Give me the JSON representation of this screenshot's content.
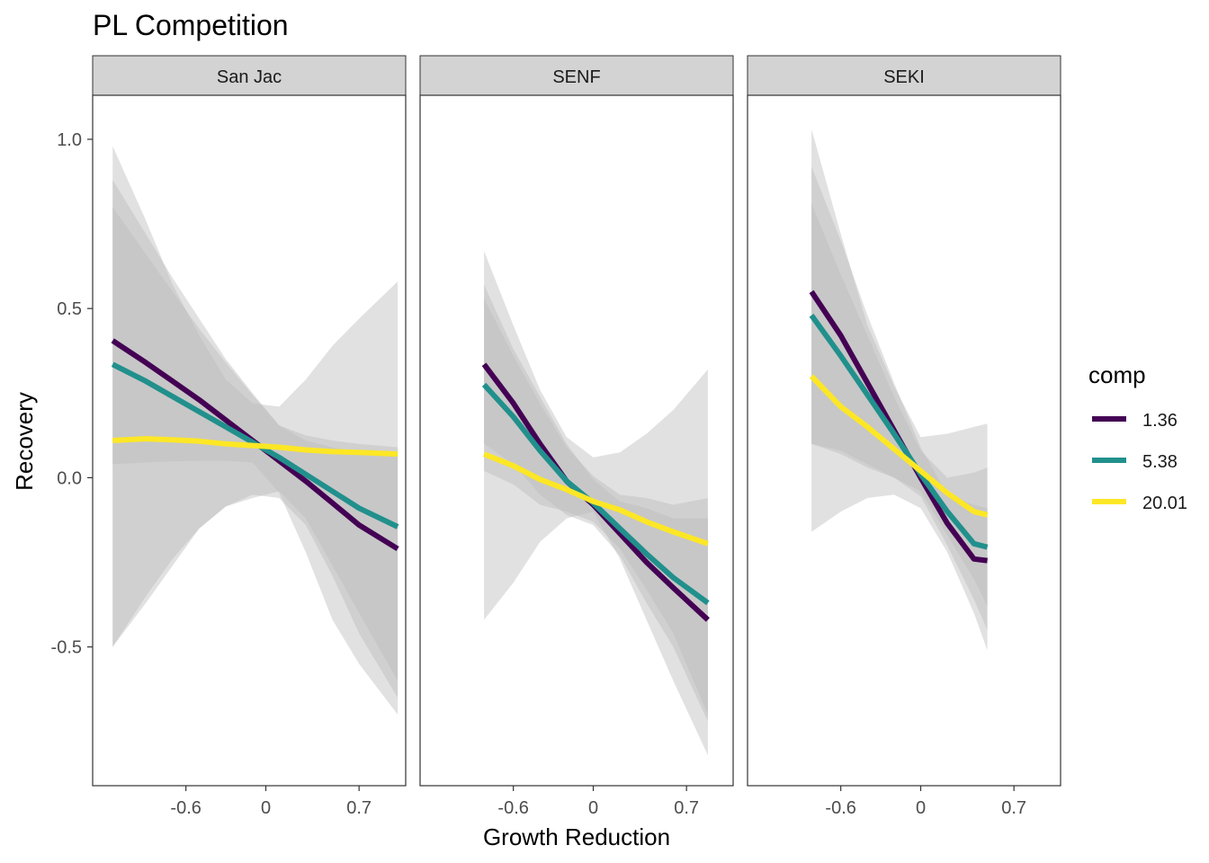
{
  "chart_data": {
    "type": "line",
    "title": "PL Competition",
    "xlabel": "Growth Reduction",
    "ylabel": "Recovery",
    "x_ticks": [
      -0.6,
      0,
      0.7
    ],
    "x_tick_labels": [
      "-0.6",
      "0",
      "0.7"
    ],
    "y_ticks": [
      -0.5,
      0.0,
      0.5,
      1.0
    ],
    "y_tick_labels": [
      "-0.5",
      "0.0",
      "0.5",
      "1.0"
    ],
    "xlim": [
      -1.3,
      1.05
    ],
    "ylim": [
      -0.91,
      1.13
    ],
    "legend": {
      "title": "comp",
      "position": "right"
    },
    "colors": {
      "1.36": "#440154",
      "5.38": "#21908C",
      "20.01": "#FDE725",
      "ribbon": "#bdbdbd",
      "strip": "#d3d3d3"
    },
    "panels": [
      {
        "label": "San Jac",
        "series": [
          {
            "name": "1.36",
            "color": "#440154",
            "x": [
              -1.15,
              -0.9,
              -0.7,
              -0.5,
              -0.3,
              -0.1,
              0.1,
              0.3,
              0.5,
              0.7,
              0.99
            ],
            "y": [
              0.405,
              0.34,
              0.285,
              0.23,
              0.17,
              0.11,
              0.05,
              -0.01,
              -0.075,
              -0.14,
              -0.21
            ],
            "lower": [
              -0.5,
              -0.35,
              -0.24,
              -0.15,
              -0.085,
              -0.05,
              -0.06,
              -0.14,
              -0.29,
              -0.46,
              -0.65
            ],
            "upper": [
              0.88,
              0.72,
              0.59,
              0.47,
              0.35,
              0.25,
              0.155,
              0.11,
              0.09,
              0.075,
              0.065
            ]
          },
          {
            "name": "5.38",
            "color": "#21908C",
            "x": [
              -1.15,
              -0.9,
              -0.7,
              -0.5,
              -0.3,
              -0.1,
              0.1,
              0.3,
              0.5,
              0.7,
              0.99
            ],
            "y": [
              0.335,
              0.285,
              0.24,
              0.195,
              0.15,
              0.105,
              0.06,
              0.01,
              -0.04,
              -0.09,
              -0.145
            ],
            "lower": [
              -0.5,
              -0.37,
              -0.26,
              -0.15,
              -0.085,
              -0.06,
              -0.04,
              -0.12,
              -0.26,
              -0.4,
              -0.6
            ],
            "upper": [
              0.8,
              0.66,
              0.55,
              0.44,
              0.34,
              0.245,
              0.155,
              0.125,
              0.11,
              0.1,
              0.09
            ]
          },
          {
            "name": "20.01",
            "color": "#FDE725",
            "x": [
              -1.15,
              -0.9,
              -0.7,
              -0.5,
              -0.3,
              -0.1,
              0.1,
              0.3,
              0.5,
              0.7,
              0.99
            ],
            "y": [
              0.11,
              0.115,
              0.112,
              0.108,
              0.1,
              0.095,
              0.09,
              0.082,
              0.077,
              0.075,
              0.07
            ],
            "lower": [
              0.04,
              0.045,
              0.048,
              0.05,
              0.05,
              0.045,
              -0.045,
              -0.22,
              -0.42,
              -0.55,
              -0.7
            ],
            "upper": [
              0.98,
              0.76,
              0.57,
              0.42,
              0.29,
              0.22,
              0.21,
              0.29,
              0.39,
              0.47,
              0.58
            ]
          }
        ]
      },
      {
        "label": "SENF",
        "series": [
          {
            "name": "1.36",
            "color": "#440154",
            "x": [
              -0.82,
              -0.6,
              -0.4,
              -0.2,
              0.0,
              0.2,
              0.4,
              0.6,
              0.86
            ],
            "y": [
              0.335,
              0.22,
              0.1,
              -0.01,
              -0.08,
              -0.165,
              -0.25,
              -0.325,
              -0.42
            ],
            "lower": [
              0.1,
              0.04,
              -0.05,
              -0.11,
              -0.14,
              -0.23,
              -0.37,
              -0.5,
              -0.72
            ],
            "upper": [
              0.57,
              0.38,
              0.24,
              0.1,
              -0.005,
              -0.07,
              -0.09,
              -0.12,
              -0.12
            ]
          },
          {
            "name": "5.38",
            "color": "#21908C",
            "x": [
              -0.82,
              -0.6,
              -0.4,
              -0.2,
              0.0,
              0.2,
              0.4,
              0.6,
              0.86
            ],
            "y": [
              0.275,
              0.18,
              0.08,
              -0.01,
              -0.075,
              -0.15,
              -0.225,
              -0.295,
              -0.37
            ],
            "lower": [
              0.02,
              -0.02,
              -0.08,
              -0.1,
              -0.13,
              -0.21,
              -0.33,
              -0.46,
              -0.7
            ],
            "upper": [
              0.53,
              0.36,
              0.22,
              0.09,
              0.005,
              -0.05,
              -0.06,
              -0.08,
              -0.06
            ]
          },
          {
            "name": "20.01",
            "color": "#FDE725",
            "x": [
              -0.82,
              -0.6,
              -0.4,
              -0.2,
              0.0,
              0.2,
              0.4,
              0.6,
              0.86
            ],
            "y": [
              0.07,
              0.035,
              -0.005,
              -0.035,
              -0.07,
              -0.095,
              -0.13,
              -0.16,
              -0.195
            ],
            "lower": [
              -0.42,
              -0.31,
              -0.19,
              -0.12,
              -0.1,
              -0.24,
              -0.42,
              -0.6,
              -0.82
            ],
            "upper": [
              0.67,
              0.45,
              0.26,
              0.12,
              0.06,
              0.075,
              0.13,
              0.2,
              0.32
            ]
          }
        ]
      },
      {
        "label": "SEKI",
        "series": [
          {
            "name": "1.36",
            "color": "#440154",
            "x": [
              -0.82,
              -0.6,
              -0.4,
              -0.2,
              0.0,
              0.2,
              0.4,
              0.5
            ],
            "y": [
              0.55,
              0.42,
              0.28,
              0.14,
              0.0,
              -0.135,
              -0.24,
              -0.245
            ],
            "lower": [
              0.1,
              0.07,
              0.03,
              0.0,
              -0.055,
              -0.2,
              -0.36,
              -0.45
            ],
            "upper": [
              0.92,
              0.7,
              0.48,
              0.28,
              0.09,
              -0.05,
              -0.08,
              -0.09
            ]
          },
          {
            "name": "5.38",
            "color": "#21908C",
            "x": [
              -0.82,
              -0.6,
              -0.4,
              -0.2,
              0.0,
              0.2,
              0.4,
              0.5
            ],
            "y": [
              0.48,
              0.36,
              0.245,
              0.13,
              0.01,
              -0.1,
              -0.195,
              -0.205
            ],
            "lower": [
              0.1,
              0.08,
              0.04,
              0.0,
              -0.04,
              -0.17,
              -0.3,
              -0.38
            ],
            "upper": [
              0.81,
              0.6,
              0.42,
              0.24,
              0.08,
              0.0,
              0.015,
              0.03
            ]
          },
          {
            "name": "20.01",
            "color": "#FDE725",
            "x": [
              -0.82,
              -0.6,
              -0.4,
              -0.2,
              0.0,
              0.2,
              0.4,
              0.5
            ],
            "y": [
              0.3,
              0.21,
              0.15,
              0.085,
              0.02,
              -0.045,
              -0.1,
              -0.11
            ],
            "lower": [
              -0.16,
              -0.1,
              -0.06,
              -0.05,
              -0.09,
              -0.22,
              -0.4,
              -0.51
            ],
            "upper": [
              1.03,
              0.72,
              0.45,
              0.27,
              0.12,
              0.13,
              0.15,
              0.16
            ]
          }
        ]
      }
    ]
  }
}
